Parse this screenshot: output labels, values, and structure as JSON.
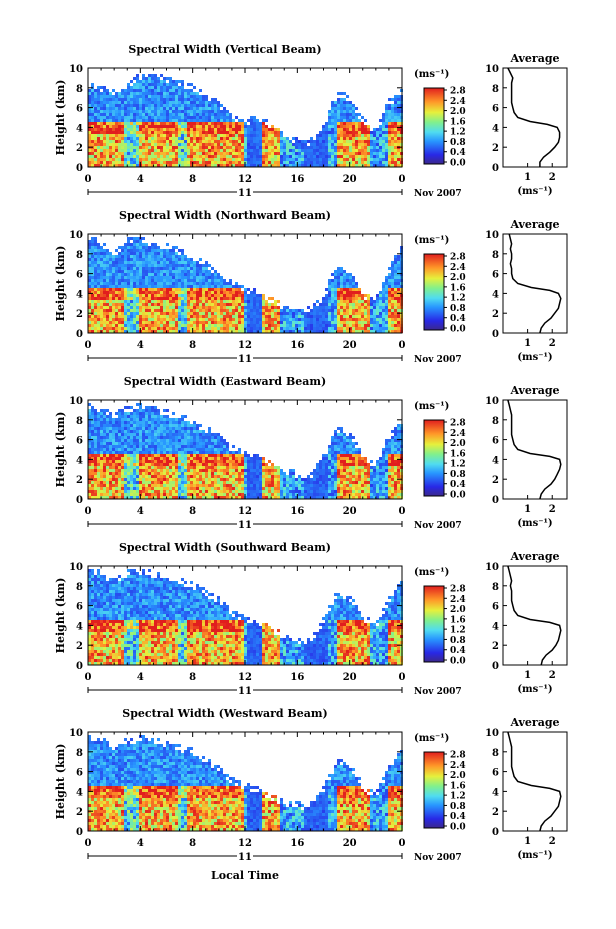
{
  "figure": {
    "xlabel": "Local Time",
    "ylabel": "Height (km)",
    "date_label": "11",
    "month_label": "Nov 2007",
    "colorbar_unit": "(ms⁻¹)",
    "avg_title": "Average",
    "avg_xlabel": "(ms⁻¹)"
  },
  "chart_data": [
    {
      "type": "heatmap",
      "title": "Spectral Width (Vertical Beam)",
      "xlabel": "",
      "ylabel": "Height (km)",
      "xlim": [
        0,
        24
      ],
      "ylim": [
        0,
        10
      ],
      "xticks": [
        "0",
        "4",
        "8",
        "12",
        "16",
        "20",
        "0"
      ],
      "yticks": [
        "0",
        "2",
        "4",
        "6",
        "8",
        "10"
      ],
      "colorbar": {
        "label": "(ms⁻¹)",
        "range": [
          0,
          2.8
        ],
        "ticks": [
          "2.8",
          "2.4",
          "2.0",
          "1.6",
          "1.2",
          "0.8",
          "0.4",
          "0.0"
        ]
      },
      "cloud_top_km": [
        8.5,
        8.3,
        8.0,
        8.7,
        9.4,
        9.6,
        9.2,
        8.8,
        8.4,
        7.6,
        6.7,
        5.5,
        4.8,
        5.3,
        4.6,
        3.5,
        3.0,
        2.8,
        4.6,
        7.5,
        7.4,
        5.0,
        3.8,
        6.8,
        7.8
      ],
      "average_profile": {
        "title": "Average",
        "xlabel": "(ms⁻¹)",
        "xlim": [
          0,
          2.6
        ],
        "ylim": [
          0,
          10
        ],
        "xticks": [
          "1",
          "2"
        ],
        "yticks": [
          "0",
          "2",
          "4",
          "6",
          "8",
          "10"
        ],
        "height_km": [
          0,
          0.5,
          1,
          1.5,
          2,
          2.5,
          3,
          3.5,
          4,
          4.3,
          4.6,
          5,
          5.5,
          6,
          6.5,
          7,
          7.5,
          8,
          8.5,
          9,
          9.5,
          10
        ],
        "values": [
          1.5,
          1.5,
          1.65,
          1.9,
          2.1,
          2.25,
          2.3,
          2.3,
          2.2,
          1.8,
          1.1,
          0.6,
          0.45,
          0.4,
          0.35,
          0.35,
          0.35,
          0.35,
          0.35,
          0.4,
          0.3,
          0.2
        ]
      }
    },
    {
      "type": "heatmap",
      "title": "Spectral Width (Northward Beam)",
      "xlabel": "",
      "ylabel": "Height (km)",
      "xlim": [
        0,
        24
      ],
      "ylim": [
        0,
        10
      ],
      "xticks": [
        "0",
        "4",
        "8",
        "12",
        "16",
        "20",
        "0"
      ],
      "yticks": [
        "0",
        "2",
        "4",
        "6",
        "8",
        "10"
      ],
      "colorbar": {
        "label": "(ms⁻¹)",
        "range": [
          0,
          2.8
        ],
        "ticks": [
          "2.8",
          "2.4",
          "2.0",
          "1.6",
          "1.2",
          "0.8",
          "0.4",
          "0.0"
        ]
      },
      "cloud_top_km": [
        9.8,
        9.5,
        8.4,
        9.6,
        9.7,
        9.4,
        9.0,
        8.6,
        8.0,
        7.2,
        6.3,
        5.2,
        4.7,
        4.4,
        3.6,
        3.0,
        2.7,
        2.6,
        4.0,
        7.0,
        6.4,
        4.2,
        3.4,
        6.6,
        9.0
      ],
      "average_profile": {
        "title": "Average",
        "xlabel": "(ms⁻¹)",
        "xlim": [
          0,
          2.6
        ],
        "ylim": [
          0,
          10
        ],
        "xticks": [
          "1",
          "2"
        ],
        "yticks": [
          "0",
          "2",
          "4",
          "6",
          "8",
          "10"
        ],
        "height_km": [
          0,
          0.5,
          1,
          1.5,
          2,
          2.5,
          3,
          3.5,
          4,
          4.3,
          4.6,
          5,
          5.5,
          6,
          6.5,
          7,
          7.5,
          8,
          8.5,
          9,
          9.5,
          10
        ],
        "values": [
          1.5,
          1.55,
          1.7,
          1.95,
          2.1,
          2.25,
          2.3,
          2.35,
          2.25,
          1.9,
          1.15,
          0.6,
          0.4,
          0.35,
          0.35,
          0.3,
          0.35,
          0.35,
          0.3,
          0.35,
          0.3,
          0.25
        ]
      }
    },
    {
      "type": "heatmap",
      "title": "Spectral Width (Eastward Beam)",
      "xlabel": "",
      "ylabel": "Height (km)",
      "xlim": [
        0,
        24
      ],
      "ylim": [
        0,
        10
      ],
      "xticks": [
        "0",
        "4",
        "8",
        "12",
        "16",
        "20",
        "0"
      ],
      "yticks": [
        "0",
        "2",
        "4",
        "6",
        "8",
        "10"
      ],
      "colorbar": {
        "label": "(ms⁻¹)",
        "range": [
          0,
          2.8
        ],
        "ticks": [
          "2.8",
          "2.4",
          "2.0",
          "1.6",
          "1.2",
          "0.8",
          "0.4",
          "0.0"
        ]
      },
      "cloud_top_km": [
        9.6,
        9.4,
        8.8,
        9.4,
        9.6,
        9.3,
        9.0,
        8.6,
        8.2,
        7.4,
        6.6,
        5.4,
        4.8,
        4.6,
        3.8,
        3.1,
        2.8,
        2.6,
        4.4,
        7.2,
        7.0,
        4.6,
        3.6,
        6.5,
        8.2
      ],
      "average_profile": {
        "title": "Average",
        "xlabel": "(ms⁻¹)",
        "xlim": [
          0,
          2.6
        ],
        "ylim": [
          0,
          10
        ],
        "xticks": [
          "1",
          "2"
        ],
        "yticks": [
          "0",
          "2",
          "4",
          "6",
          "8",
          "10"
        ],
        "height_km": [
          0,
          0.5,
          1,
          1.5,
          2,
          2.5,
          3,
          3.5,
          4,
          4.3,
          4.6,
          5,
          5.5,
          6,
          6.5,
          7,
          7.5,
          8,
          8.5,
          9,
          9.5,
          10
        ],
        "values": [
          1.5,
          1.55,
          1.7,
          1.95,
          2.1,
          2.2,
          2.3,
          2.35,
          2.3,
          1.9,
          1.1,
          0.6,
          0.45,
          0.4,
          0.35,
          0.35,
          0.35,
          0.35,
          0.35,
          0.3,
          0.25,
          0.2
        ]
      }
    },
    {
      "type": "heatmap",
      "title": "Spectral Width (Southward Beam)",
      "xlabel": "",
      "ylabel": "Height (km)",
      "xlim": [
        0,
        24
      ],
      "ylim": [
        0,
        10
      ],
      "xticks": [
        "0",
        "4",
        "8",
        "12",
        "16",
        "20",
        "0"
      ],
      "yticks": [
        "0",
        "2",
        "4",
        "6",
        "8",
        "10"
      ],
      "colorbar": {
        "label": "(ms⁻¹)",
        "range": [
          0,
          2.8
        ],
        "ticks": [
          "2.8",
          "2.4",
          "2.0",
          "1.6",
          "1.2",
          "0.8",
          "0.4",
          "0.0"
        ]
      },
      "cloud_top_km": [
        9.8,
        9.6,
        8.6,
        9.6,
        9.7,
        9.5,
        9.2,
        8.8,
        8.4,
        7.6,
        6.8,
        5.6,
        4.9,
        4.6,
        3.9,
        3.2,
        2.9,
        2.7,
        4.8,
        7.6,
        7.2,
        5.2,
        4.2,
        7.0,
        8.8
      ],
      "average_profile": {
        "title": "Average",
        "xlabel": "(ms⁻¹)",
        "xlim": [
          0,
          2.6
        ],
        "ylim": [
          0,
          10
        ],
        "xticks": [
          "1",
          "2"
        ],
        "yticks": [
          "0",
          "2",
          "4",
          "6",
          "8",
          "10"
        ],
        "height_km": [
          0,
          0.5,
          1,
          1.5,
          2,
          2.5,
          3,
          3.5,
          4,
          4.3,
          4.6,
          5,
          5.5,
          6,
          6.5,
          7,
          7.5,
          8,
          8.5,
          9,
          9.5,
          10
        ],
        "values": [
          1.55,
          1.6,
          1.75,
          2.0,
          2.15,
          2.25,
          2.3,
          2.35,
          2.3,
          1.9,
          1.1,
          0.6,
          0.45,
          0.4,
          0.35,
          0.35,
          0.35,
          0.3,
          0.35,
          0.3,
          0.25,
          0.2
        ]
      }
    },
    {
      "type": "heatmap",
      "title": "Spectral Width (Westward Beam)",
      "xlabel": "Local Time",
      "ylabel": "Height (km)",
      "xlim": [
        0,
        24
      ],
      "ylim": [
        0,
        10
      ],
      "xticks": [
        "0",
        "4",
        "8",
        "12",
        "16",
        "20",
        "0"
      ],
      "yticks": [
        "0",
        "2",
        "4",
        "6",
        "8",
        "10"
      ],
      "colorbar": {
        "label": "(ms⁻¹)",
        "range": [
          0,
          2.8
        ],
        "ticks": [
          "2.8",
          "2.4",
          "2.0",
          "1.6",
          "1.2",
          "0.8",
          "0.4",
          "0.0"
        ]
      },
      "cloud_top_km": [
        9.6,
        9.4,
        8.8,
        9.4,
        9.6,
        9.4,
        9.0,
        8.7,
        8.3,
        7.4,
        6.6,
        5.4,
        4.8,
        4.5,
        3.8,
        3.1,
        2.9,
        2.8,
        4.6,
        7.3,
        7.0,
        4.8,
        3.8,
        6.6,
        8.6
      ],
      "average_profile": {
        "title": "Average",
        "xlabel": "(ms⁻¹)",
        "xlim": [
          0,
          2.6
        ],
        "ylim": [
          0,
          10
        ],
        "xticks": [
          "1",
          "2"
        ],
        "yticks": [
          "0",
          "2",
          "4",
          "6",
          "8",
          "10"
        ],
        "height_km": [
          0,
          0.5,
          1,
          1.5,
          2,
          2.5,
          3,
          3.5,
          4,
          4.3,
          4.6,
          5,
          5.5,
          6,
          6.5,
          7,
          7.5,
          8,
          8.5,
          9,
          9.5,
          10
        ],
        "values": [
          1.5,
          1.55,
          1.7,
          1.95,
          2.1,
          2.25,
          2.3,
          2.35,
          2.3,
          1.9,
          1.15,
          0.6,
          0.45,
          0.4,
          0.35,
          0.35,
          0.35,
          0.35,
          0.35,
          0.3,
          0.25,
          0.2
        ]
      }
    }
  ]
}
